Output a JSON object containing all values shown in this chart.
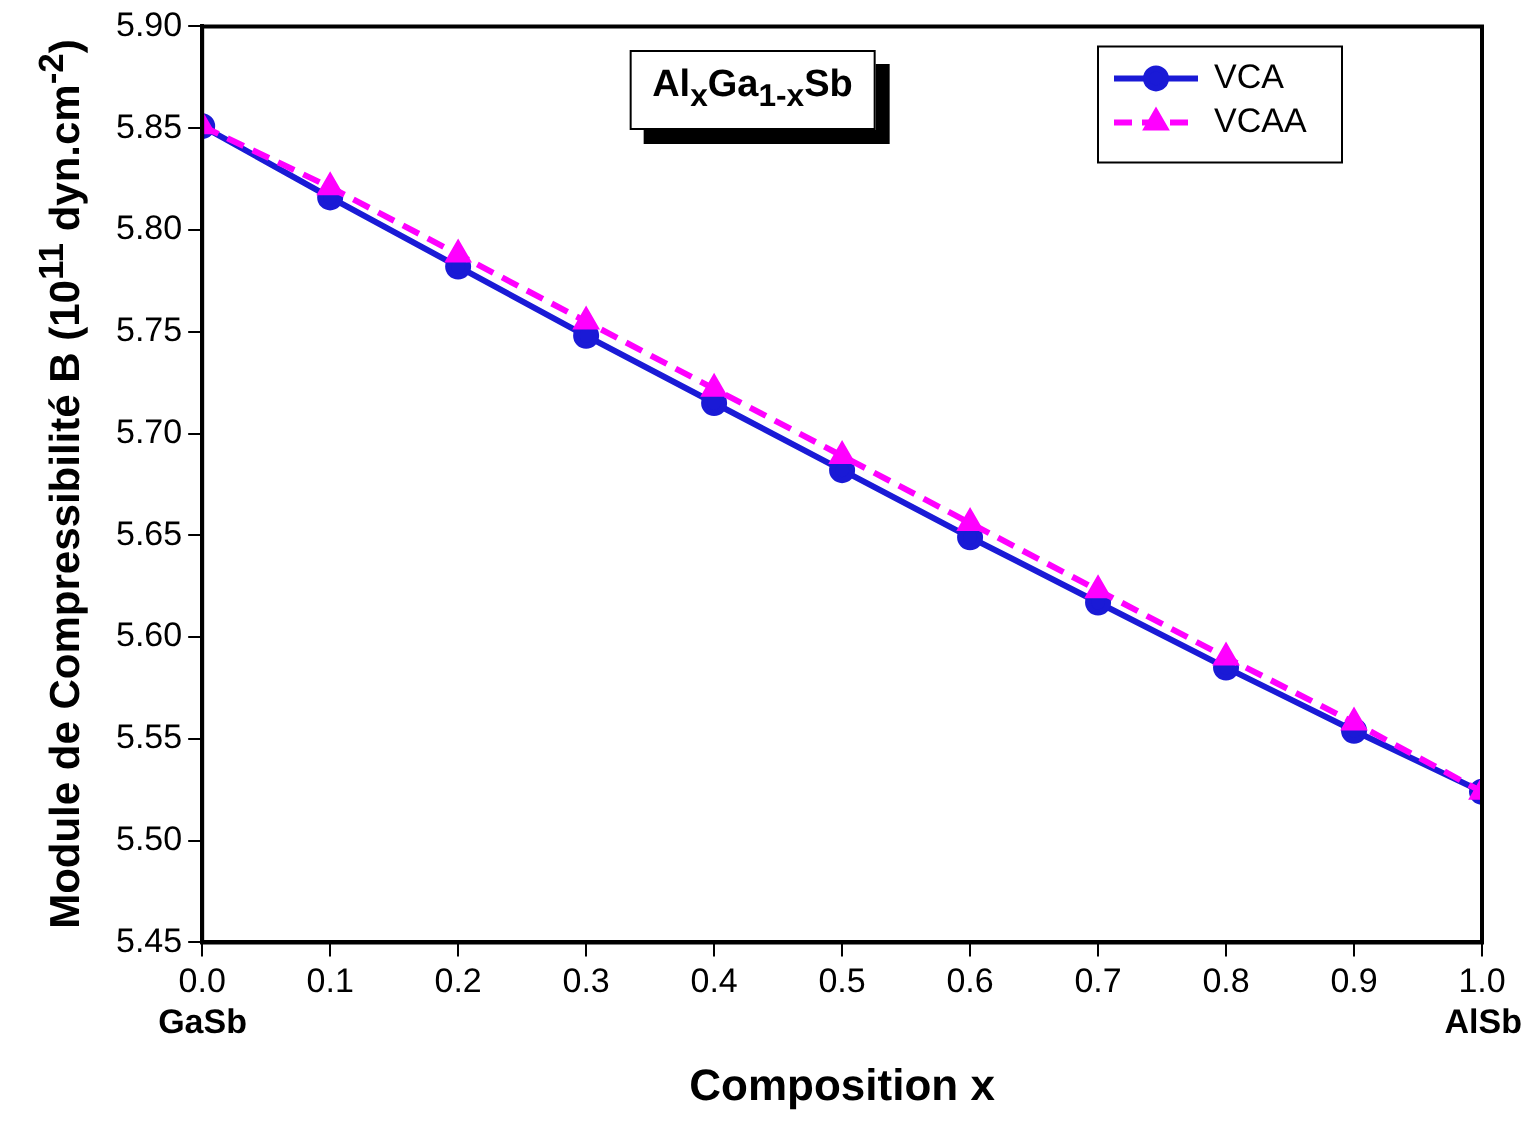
{
  "chart_data": {
    "type": "line",
    "title": "Al$_{x}$Ga$_{1-x}$Sb",
    "xlabel": "Composition x",
    "ylabel": "Module de Compressibilité B (10$^{11}$ dyn.cm$^{-2}$)",
    "x": [
      0,
      0.1,
      0.2,
      0.3,
      0.4,
      0.5,
      0.6,
      0.7,
      0.8,
      0.9,
      1.0
    ],
    "series": [
      {
        "name": "VCA",
        "color": "#1a1ad6",
        "marker": "circle",
        "line_style": "solid",
        "values": [
          5.851,
          5.816,
          5.782,
          5.748,
          5.715,
          5.682,
          5.649,
          5.617,
          5.585,
          5.554,
          5.524
        ]
      },
      {
        "name": "VCAA",
        "color": "#ff00ff",
        "marker": "triangle",
        "line_style": "dashed",
        "values": [
          5.851,
          5.821,
          5.788,
          5.755,
          5.722,
          5.689,
          5.656,
          5.623,
          5.59,
          5.558,
          5.524
        ]
      }
    ],
    "xlim": [
      0,
      1
    ],
    "xticks": [
      {
        "value": 0,
        "label": "0.0"
      },
      {
        "value": 0.1,
        "label": "0.1"
      },
      {
        "value": 0.2,
        "label": "0.2"
      },
      {
        "value": 0.3,
        "label": "0.3"
      },
      {
        "value": 0.4,
        "label": "0.4"
      },
      {
        "value": 0.5,
        "label": "0.5"
      },
      {
        "value": 0.6,
        "label": "0.6"
      },
      {
        "value": 0.7,
        "label": "0.7"
      },
      {
        "value": 0.8,
        "label": "0.8"
      },
      {
        "value": 0.9,
        "label": "0.9"
      },
      {
        "value": 1,
        "label": "1.0"
      }
    ],
    "ylim": [
      5.45,
      5.9
    ],
    "yticks": [
      {
        "value": 5.45,
        "label": "5.45"
      },
      {
        "value": 5.5,
        "label": "5.50"
      },
      {
        "value": 5.55,
        "label": "5.55"
      },
      {
        "value": 5.6,
        "label": "5.60"
      },
      {
        "value": 5.65,
        "label": "5.65"
      },
      {
        "value": 5.7,
        "label": "5.70"
      },
      {
        "value": 5.75,
        "label": "5.75"
      },
      {
        "value": 5.8,
        "label": "5.80"
      },
      {
        "value": 5.85,
        "label": "5.85"
      },
      {
        "value": 5.9,
        "label": "5.90"
      }
    ],
    "annotations": [
      "GaSb",
      "AlSb"
    ],
    "grid": false,
    "legend": "top right"
  }
}
